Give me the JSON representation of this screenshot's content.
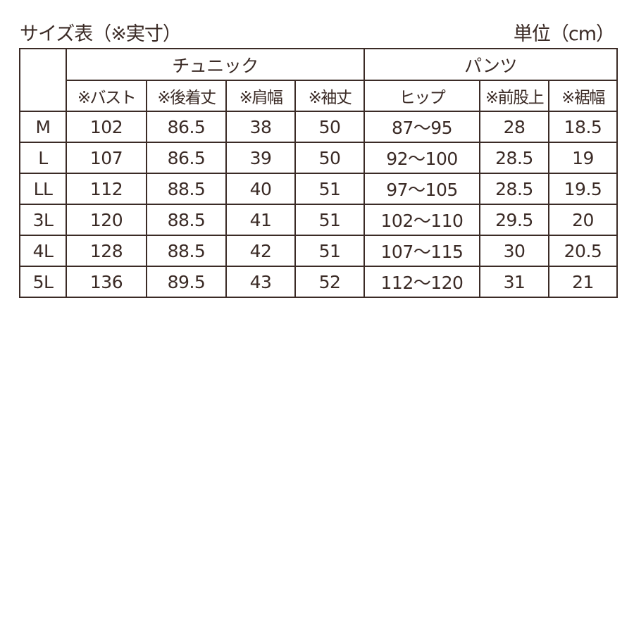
{
  "title": "サイズ表（※実寸）",
  "unit": "単位（cm）",
  "groups": [
    "チュニック",
    "パンツ"
  ],
  "columns": [
    "※バスト",
    "※後着丈",
    "※肩幅",
    "※袖丈",
    "ヒップ",
    "※前股上",
    "※裾幅"
  ],
  "rows": [
    {
      "size": "M",
      "values": [
        "102",
        "86.5",
        "38",
        "50",
        "87〜95",
        "28",
        "18.5"
      ]
    },
    {
      "size": "L",
      "values": [
        "107",
        "86.5",
        "39",
        "50",
        "92〜100",
        "28.5",
        "19"
      ]
    },
    {
      "size": "LL",
      "values": [
        "112",
        "88.5",
        "40",
        "51",
        "97〜105",
        "28.5",
        "19.5"
      ]
    },
    {
      "size": "3L",
      "values": [
        "120",
        "88.5",
        "41",
        "51",
        "102〜110",
        "29.5",
        "20"
      ]
    },
    {
      "size": "4L",
      "values": [
        "128",
        "88.5",
        "42",
        "51",
        "107〜115",
        "30",
        "20.5"
      ]
    },
    {
      "size": "5L",
      "values": [
        "136",
        "89.5",
        "43",
        "52",
        "112〜120",
        "31",
        "21"
      ]
    }
  ],
  "colors": {
    "text": "#3b2b26",
    "border": "#3b2b26"
  }
}
